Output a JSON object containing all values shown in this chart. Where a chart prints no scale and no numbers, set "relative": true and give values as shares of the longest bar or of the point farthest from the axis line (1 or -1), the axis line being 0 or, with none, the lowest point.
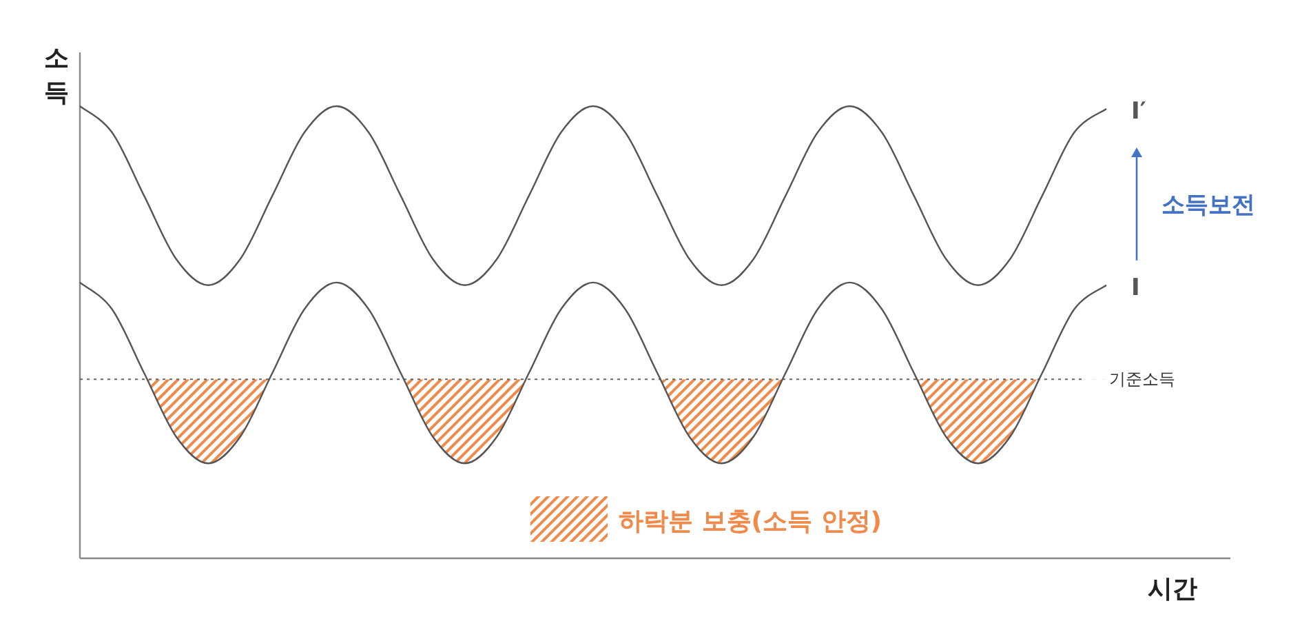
{
  "chart_data": {
    "type": "line",
    "relative": true,
    "xlabel": "시간",
    "ylabel": "소득",
    "marker": "none",
    "line_style": "solid",
    "categories": [
      null,
      null,
      null,
      null,
      null,
      null,
      null,
      null,
      null,
      null,
      null,
      null,
      null,
      null,
      null,
      null,
      null,
      null,
      null,
      null,
      null,
      null,
      null,
      null,
      null,
      null,
      null,
      null,
      null,
      null,
      null,
      null,
      null
    ],
    "series": [
      {
        "name": "I′",
        "color": "#555555",
        "values": [
          1.0,
          0.942,
          0.802,
          0.662,
          0.604,
          0.662,
          0.802,
          0.942,
          1.0,
          0.942,
          0.802,
          0.662,
          0.604,
          0.662,
          0.802,
          0.942,
          1.0,
          0.942,
          0.802,
          0.662,
          0.604,
          0.662,
          0.802,
          0.942,
          1.0,
          0.942,
          0.802,
          0.662,
          0.604,
          0.662,
          0.802,
          0.942,
          0.994
        ]
      },
      {
        "name": "I",
        "color": "#555555",
        "values": [
          0.61,
          0.551,
          0.41,
          0.269,
          0.21,
          0.269,
          0.41,
          0.551,
          0.61,
          0.551,
          0.41,
          0.269,
          0.21,
          0.269,
          0.41,
          0.551,
          0.61,
          0.551,
          0.41,
          0.269,
          0.21,
          0.269,
          0.41,
          0.551,
          0.61,
          0.551,
          0.41,
          0.269,
          0.21,
          0.269,
          0.41,
          0.551,
          0.604
        ]
      }
    ],
    "ref_lines": [
      {
        "axis": "y",
        "value": 0.396,
        "label": "기준소득",
        "line_style": "dotted",
        "color": "#666666"
      }
    ],
    "annotations": [
      "소득보전",
      "하락분 보충(소득 안정)"
    ]
  }
}
